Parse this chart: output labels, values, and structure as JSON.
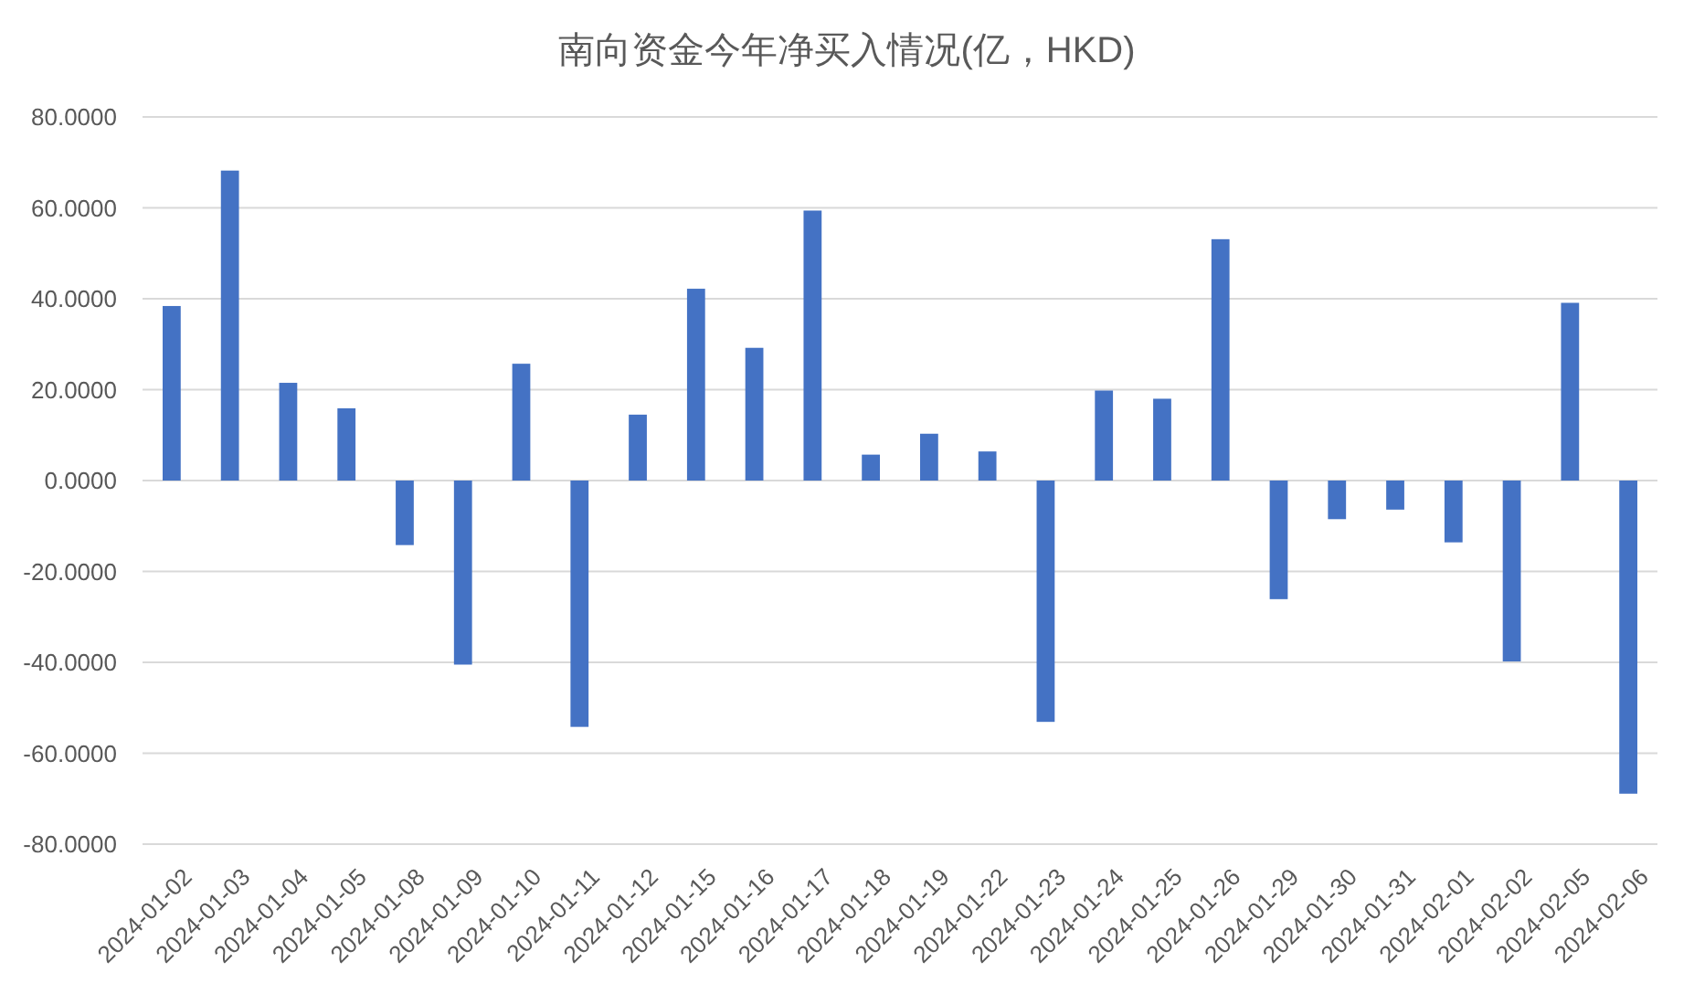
{
  "chart_data": {
    "type": "bar",
    "title": "南向资金今年净买入情况(亿，HKD)",
    "categories": [
      "2024-01-02",
      "2024-01-03",
      "2024-01-04",
      "2024-01-05",
      "2024-01-08",
      "2024-01-09",
      "2024-01-10",
      "2024-01-11",
      "2024-01-12",
      "2024-01-15",
      "2024-01-16",
      "2024-01-17",
      "2024-01-18",
      "2024-01-19",
      "2024-01-22",
      "2024-01-23",
      "2024-01-24",
      "2024-01-25",
      "2024-01-26",
      "2024-01-29",
      "2024-01-30",
      "2024-01-31",
      "2024-02-01",
      "2024-02-02",
      "2024-02-05",
      "2024-02-06"
    ],
    "values": [
      38.4,
      68.2,
      21.5,
      15.9,
      -14.2,
      -40.5,
      25.7,
      -54.2,
      14.5,
      42.2,
      29.2,
      59.4,
      5.7,
      10.3,
      6.4,
      -53.1,
      19.8,
      18.0,
      53.1,
      -26.1,
      -8.5,
      -6.4,
      -13.6,
      -39.8,
      39.1,
      -68.9
    ],
    "color": "#4472c4",
    "ylim": [
      -80,
      80
    ],
    "yticks": [
      {
        "value": -80,
        "label": "-80.0000"
      },
      {
        "value": -60,
        "label": "-60.0000"
      },
      {
        "value": -40,
        "label": "-40.0000"
      },
      {
        "value": -20,
        "label": "-20.0000"
      },
      {
        "value": 0,
        "label": "0.0000"
      },
      {
        "value": 20,
        "label": "20.0000"
      },
      {
        "value": 40,
        "label": "40.0000"
      },
      {
        "value": 60,
        "label": "60.0000"
      },
      {
        "value": 80,
        "label": "80.0000"
      }
    ],
    "grid": "y"
  }
}
